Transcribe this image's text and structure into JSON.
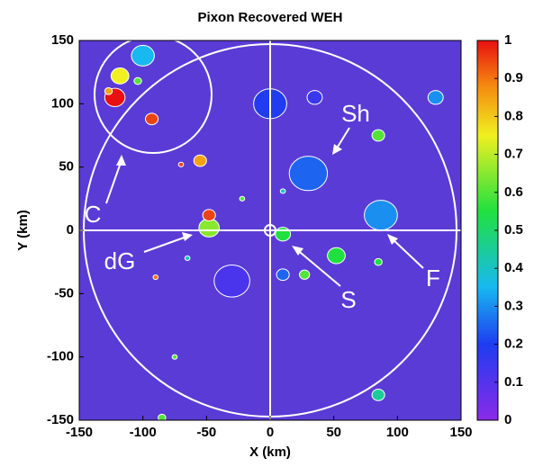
{
  "chart_data": {
    "type": "heatmap",
    "title": "Pixon Recovered WEH",
    "x_label": "X (km)",
    "y_label": "Y (km)",
    "xlim": [
      -150,
      150
    ],
    "ylim": [
      -150,
      150
    ],
    "xticks": [
      -150,
      -100,
      -50,
      0,
      50,
      100,
      150
    ],
    "yticks": [
      -150,
      -100,
      -50,
      0,
      50,
      100,
      150
    ],
    "colorbar": {
      "lim": [
        0,
        1
      ],
      "ticks": [
        0,
        0.1,
        0.2,
        0.3,
        0.4,
        0.5,
        0.6,
        0.7,
        0.8,
        0.9,
        1
      ]
    },
    "annotations": [
      "C",
      "Sh",
      "dG",
      "S",
      "F"
    ],
    "blobs": {
      "x": [
        -122,
        -118,
        -100,
        -104,
        -93,
        -127,
        0,
        35,
        30,
        85,
        87,
        130,
        -48,
        -48,
        10,
        52,
        10,
        27,
        85,
        -30,
        -55,
        -70,
        10,
        -22,
        -75,
        -65,
        -90,
        85,
        -85
      ],
      "y": [
        105,
        122,
        138,
        118,
        88,
        110,
        100,
        105,
        45,
        75,
        12,
        105,
        2,
        12,
        -3,
        -20,
        -35,
        -35,
        -25,
        -40,
        55,
        52,
        31,
        25,
        -100,
        -22,
        -37,
        -130,
        -148
      ],
      "values": [
        1,
        0.75,
        0.35,
        0.6,
        0.95,
        0.85,
        0.2,
        0.15,
        0.25,
        0.6,
        0.3,
        0.3,
        0.65,
        0.95,
        0.55,
        0.55,
        0.25,
        0.6,
        0.55,
        0.12,
        0.85,
        0.95,
        0.4,
        0.6,
        0.6,
        0.4,
        0.9,
        0.45,
        0.6
      ],
      "sizes": [
        8,
        7,
        9,
        3,
        5,
        3,
        13,
        6,
        15,
        5,
        13,
        6,
        8,
        5,
        6,
        7,
        5,
        4,
        3,
        14,
        5,
        2,
        2,
        2,
        2,
        2,
        2,
        5,
        3
      ]
    }
  }
}
